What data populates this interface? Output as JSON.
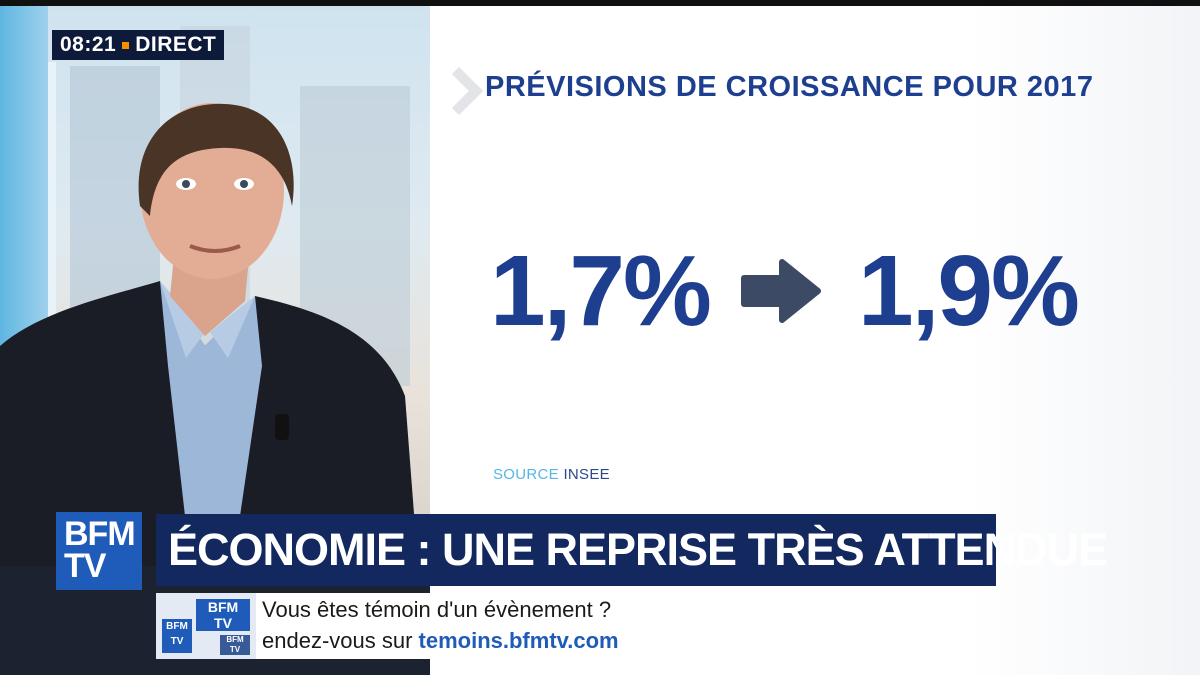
{
  "broadcast": {
    "time": "08:21",
    "live_label": "DIRECT"
  },
  "infographic": {
    "title": "PRÉVISIONS DE CROISSANCE POUR 2017",
    "from_value": "1,7%",
    "to_value": "1,9%",
    "source_label": "SOURCE",
    "source_value": "INSEE",
    "arrow_icon": "arrow-right-icon"
  },
  "lower_third": {
    "channel_logo_line1": "BFM",
    "channel_logo_line2": "TV",
    "headline": "ÉCONOMIE : UNE REPRISE TRÈS ATTENDUE",
    "ticker_line1": "Vous êtes témoin d'un évènement ?",
    "ticker_line2_prefix": "endez-vous sur ",
    "ticker_url": "temoins.bfmtv.com"
  },
  "colors": {
    "brand_navy": "#12285e",
    "brand_blue": "#1f5bb8",
    "accent_orange": "#f39200",
    "figure_blue": "#1e3f8f",
    "source_light_blue": "#55b6e5"
  }
}
